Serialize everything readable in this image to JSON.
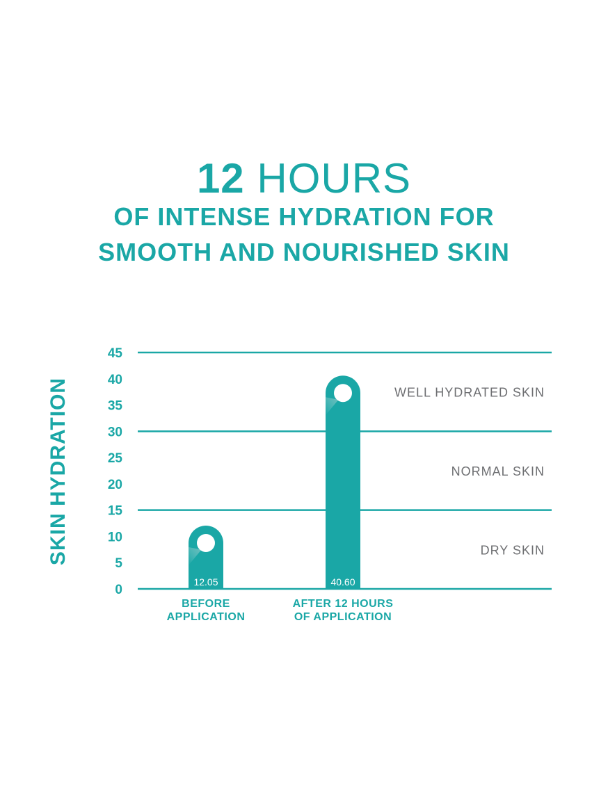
{
  "title": {
    "number": "12",
    "word": "HOURS"
  },
  "subtitle": [
    "OF INTENSE HYDRATION FOR",
    "SMOOTH AND NOURISHED SKIN"
  ],
  "colors": {
    "accent": "#1aa7a6",
    "zone_text": "#6d6e71",
    "shadow": "#dcdcdc",
    "white": "#ffffff"
  },
  "chart_data": {
    "type": "bar",
    "ylabel": "SKIN HYDRATION",
    "ylim": [
      0,
      45
    ],
    "yticks": [
      "0",
      "5",
      "10",
      "15",
      "20",
      "25",
      "30",
      "35",
      "40",
      "45"
    ],
    "categories": [
      [
        "BEFORE",
        "APPLICATION"
      ],
      [
        "AFTER 12 HOURS",
        "OF APPLICATION"
      ]
    ],
    "values": [
      12.05,
      40.6
    ],
    "value_labels": [
      "12.05",
      "40.60"
    ],
    "gridlines": [
      0,
      15,
      30,
      45
    ],
    "zones": [
      {
        "label": "WELL HYDRATED SKIN",
        "range": [
          30,
          45
        ]
      },
      {
        "label": "NORMAL SKIN",
        "range": [
          15,
          30
        ]
      },
      {
        "label": "DRY SKIN",
        "range": [
          0,
          15
        ]
      }
    ],
    "grid": true,
    "legend": "none"
  }
}
